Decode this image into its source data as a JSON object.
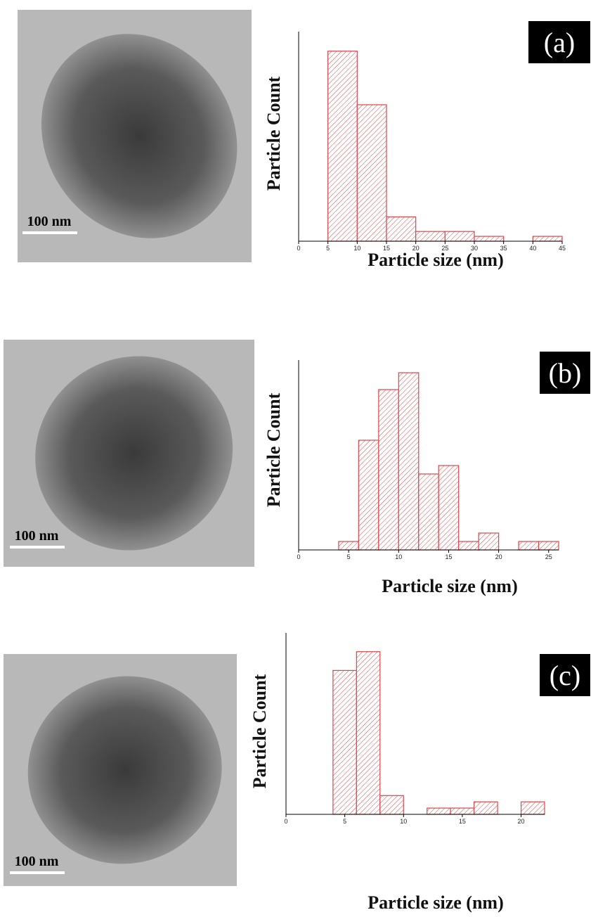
{
  "chart_data": [
    {
      "type": "histogram",
      "panel_label": "(a)",
      "y_label": "Particle Count",
      "x_label": "Particle size (nm)",
      "scale_bar_label": "100 nm",
      "bins": [
        0,
        5,
        10,
        15,
        20,
        25,
        30,
        35,
        40,
        45
      ],
      "values": [
        0,
        39,
        28,
        5,
        2,
        2,
        1,
        0,
        1
      ],
      "color": "#d9474b",
      "xlim": [
        0,
        45
      ],
      "xticks": [
        0,
        5,
        10,
        15,
        20,
        25,
        30,
        35,
        40,
        45
      ],
      "ylim": [
        0,
        43
      ]
    },
    {
      "type": "histogram",
      "panel_label": "(b)",
      "y_label": "Particle Count",
      "x_label": "Particle size (nm)",
      "scale_bar_label": "100 nm",
      "bins": [
        0,
        2,
        4,
        6,
        8,
        10,
        12,
        14,
        16,
        18,
        20,
        22,
        24,
        26
      ],
      "values": [
        0,
        0,
        1,
        13,
        19,
        21,
        9,
        10,
        1,
        2,
        0,
        1,
        1
      ],
      "color": "#d9474b",
      "xlim": [
        0,
        26
      ],
      "xticks": [
        0,
        5,
        10,
        15,
        20,
        25
      ],
      "ylim": [
        0,
        22.5
      ]
    },
    {
      "type": "histogram",
      "panel_label": "(c)",
      "y_label": "Particle Count",
      "x_label": "Particle size (nm)",
      "scale_bar_label": "100 nm",
      "bins": [
        0,
        2,
        4,
        6,
        8,
        10,
        12,
        14,
        16,
        18,
        20,
        22
      ],
      "values": [
        0,
        0,
        23,
        26,
        3,
        0,
        1,
        1,
        2,
        0,
        2
      ],
      "color": "#d9474b",
      "xlim": [
        0,
        22
      ],
      "xticks": [
        0,
        5,
        10,
        15,
        20
      ],
      "ylim": [
        0,
        29
      ]
    }
  ]
}
